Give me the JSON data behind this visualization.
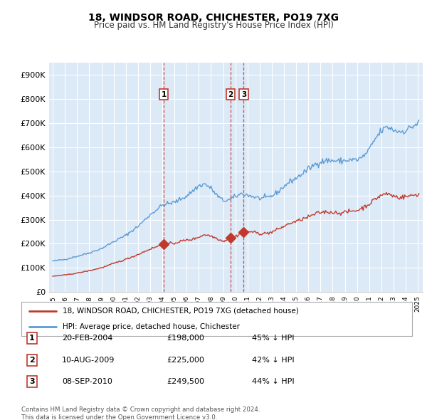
{
  "title": "18, WINDSOR ROAD, CHICHESTER, PO19 7XG",
  "subtitle": "Price paid vs. HM Land Registry's House Price Index (HPI)",
  "ylim": [
    0,
    950000
  ],
  "yticks": [
    0,
    100000,
    200000,
    300000,
    400000,
    500000,
    600000,
    700000,
    800000,
    900000
  ],
  "ytick_labels": [
    "£0",
    "£100K",
    "£200K",
    "£300K",
    "£400K",
    "£500K",
    "£600K",
    "£700K",
    "£800K",
    "£900K"
  ],
  "hpi_color": "#5b9bd5",
  "price_color": "#c0392b",
  "vline_color": "#c0392b",
  "chart_bg": "#dce9f7",
  "purchases": [
    {
      "date_num": 2004.12,
      "price": 198000,
      "label": "1"
    },
    {
      "date_num": 2009.6,
      "price": 225000,
      "label": "2"
    },
    {
      "date_num": 2010.69,
      "price": 249500,
      "label": "3"
    }
  ],
  "legend_entries": [
    "18, WINDSOR ROAD, CHICHESTER, PO19 7XG (detached house)",
    "HPI: Average price, detached house, Chichester"
  ],
  "table_rows": [
    [
      "1",
      "20-FEB-2004",
      "£198,000",
      "45% ↓ HPI"
    ],
    [
      "2",
      "10-AUG-2009",
      "£225,000",
      "42% ↓ HPI"
    ],
    [
      "3",
      "08-SEP-2010",
      "£249,500",
      "44% ↓ HPI"
    ]
  ],
  "footnote": "Contains HM Land Registry data © Crown copyright and database right 2024.\nThis data is licensed under the Open Government Licence v3.0.",
  "background_color": "#ffffff",
  "grid_color": "#ffffff"
}
